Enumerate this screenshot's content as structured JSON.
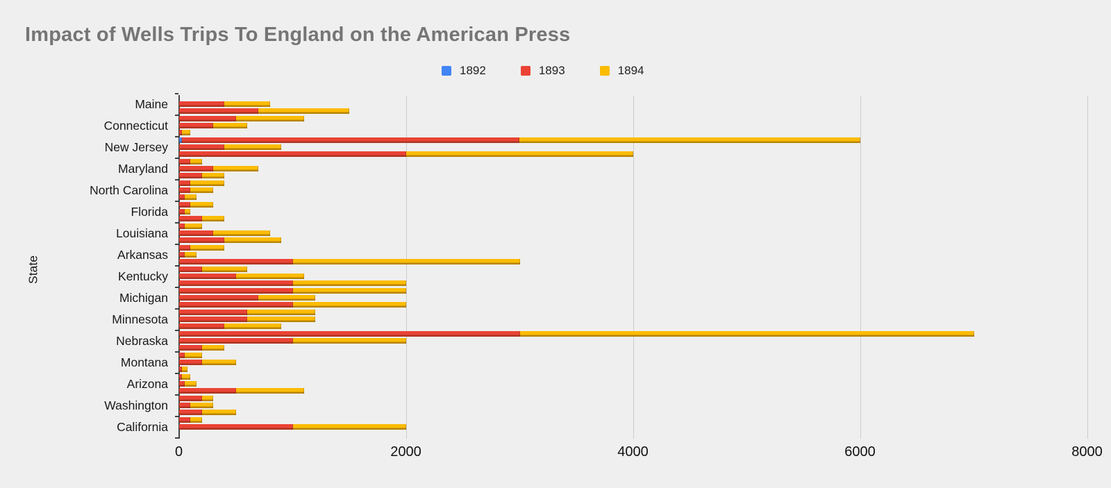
{
  "title": "Impact of Wells Trips To England on the American Press",
  "legend": {
    "items": [
      {
        "label": "1892",
        "color": "#4285F4"
      },
      {
        "label": "1893",
        "color": "#EA4335"
      },
      {
        "label": "1894",
        "color": "#FBBC04"
      }
    ]
  },
  "y_axis_title": "State",
  "chart_data": {
    "type": "bar",
    "orientation": "horizontal",
    "stacked": true,
    "title": "Impact of Wells Trips To England on the American Press",
    "ylabel": "State",
    "xlabel": "",
    "xlim": [
      0,
      8000
    ],
    "x_ticks": [
      0,
      2000,
      4000,
      6000,
      8000
    ],
    "x_tick_labels": [
      "0",
      "2000",
      "4000",
      "6000",
      "8000"
    ],
    "grid": true,
    "legend_position": "top-center",
    "series_names": [
      "1892",
      "1893",
      "1894"
    ],
    "series_colors": [
      "#4285F4",
      "#EA4335",
      "#FBBC04"
    ],
    "bars_per_state": 3,
    "categories": [
      "Maine",
      "Connecticut",
      "New Jersey",
      "Maryland",
      "North Carolina",
      "Florida",
      "Louisiana",
      "Arkansas",
      "Kentucky",
      "Michigan",
      "Minnesota",
      "Nebraska",
      "Montana",
      "Arizona",
      "Washington",
      "California"
    ],
    "rows": [
      {
        "state": "Maine",
        "bars": [
          [
            0,
            0,
            0
          ],
          [
            0,
            400,
            400
          ],
          [
            0,
            700,
            800
          ]
        ]
      },
      {
        "state": "Connecticut",
        "bars": [
          [
            0,
            500,
            600
          ],
          [
            0,
            300,
            300
          ],
          [
            0,
            25,
            75
          ]
        ]
      },
      {
        "state": "New Jersey",
        "bars": [
          [
            25,
            2975,
            3000
          ],
          [
            0,
            400,
            500
          ],
          [
            0,
            2000,
            2000
          ]
        ]
      },
      {
        "state": "Maryland",
        "bars": [
          [
            0,
            100,
            100
          ],
          [
            0,
            300,
            400
          ],
          [
            0,
            200,
            200
          ]
        ]
      },
      {
        "state": "North Carolina",
        "bars": [
          [
            0,
            100,
            300
          ],
          [
            0,
            100,
            200
          ],
          [
            0,
            50,
            100
          ]
        ]
      },
      {
        "state": "Florida",
        "bars": [
          [
            0,
            100,
            200
          ],
          [
            0,
            50,
            50
          ],
          [
            0,
            200,
            200
          ]
        ]
      },
      {
        "state": "Louisiana",
        "bars": [
          [
            0,
            50,
            150
          ],
          [
            0,
            300,
            500
          ],
          [
            0,
            400,
            500
          ]
        ]
      },
      {
        "state": "Arkansas",
        "bars": [
          [
            0,
            100,
            300
          ],
          [
            0,
            50,
            100
          ],
          [
            0,
            1000,
            2000
          ]
        ]
      },
      {
        "state": "Kentucky",
        "bars": [
          [
            0,
            200,
            400
          ],
          [
            0,
            500,
            600
          ],
          [
            0,
            1000,
            1000
          ]
        ]
      },
      {
        "state": "Michigan",
        "bars": [
          [
            0,
            1000,
            1000
          ],
          [
            0,
            700,
            500
          ],
          [
            0,
            1000,
            1000
          ]
        ]
      },
      {
        "state": "Minnesota",
        "bars": [
          [
            0,
            600,
            600
          ],
          [
            0,
            600,
            600
          ],
          [
            0,
            400,
            500
          ]
        ]
      },
      {
        "state": "Nebraska",
        "bars": [
          [
            0,
            3000,
            4000
          ],
          [
            0,
            1000,
            1000
          ],
          [
            0,
            200,
            200
          ]
        ]
      },
      {
        "state": "Montana",
        "bars": [
          [
            0,
            50,
            150
          ],
          [
            0,
            200,
            300
          ],
          [
            0,
            25,
            50
          ]
        ]
      },
      {
        "state": "Arizona",
        "bars": [
          [
            0,
            25,
            75
          ],
          [
            0,
            50,
            100
          ],
          [
            0,
            500,
            600
          ]
        ]
      },
      {
        "state": "Washington",
        "bars": [
          [
            0,
            200,
            100
          ],
          [
            0,
            100,
            200
          ],
          [
            0,
            200,
            300
          ]
        ]
      },
      {
        "state": "California",
        "bars": [
          [
            0,
            100,
            100
          ],
          [
            0,
            1000,
            1000
          ],
          [
            0,
            0,
            0
          ]
        ]
      }
    ]
  }
}
